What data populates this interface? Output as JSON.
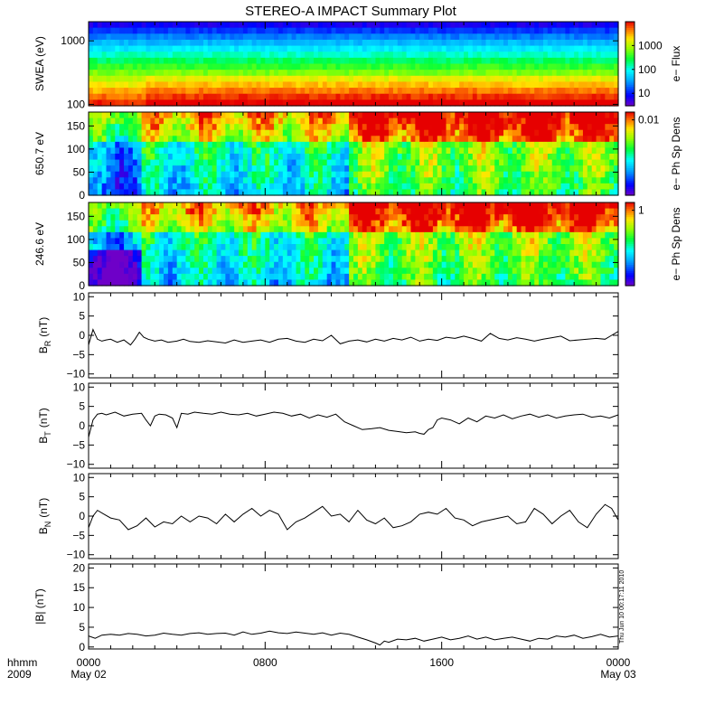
{
  "chart_data": {
    "title": "STEREO-A IMPACT Summary Plot",
    "timestamp": "Thu Jun 10 00:17:11 2010",
    "x_axis": {
      "range_hours": [
        0,
        24
      ],
      "corner_label_top": "hhmm",
      "corner_label_bottom": "2009",
      "ticks": [
        {
          "hour": 0,
          "label": "0000",
          "sub": "May 02"
        },
        {
          "hour": 8,
          "label": "0800",
          "sub": ""
        },
        {
          "hour": 16,
          "label": "1600",
          "sub": ""
        },
        {
          "hour": 24,
          "label": "0000",
          "sub": "May 03"
        }
      ]
    },
    "panels": [
      {
        "id": "swea",
        "type": "heatmap",
        "ylabel": "SWEA (eV)",
        "yscale": "log",
        "ylim": [
          95,
          2000
        ],
        "yticks": [
          {
            "v": 100,
            "label": "100"
          },
          {
            "v": 1000,
            "label": "1000"
          }
        ],
        "colorbar": {
          "label": "e− Flux",
          "scale": "log",
          "range": [
            3,
            10000
          ],
          "ticks": [
            {
              "v": 10,
              "label": "10"
            },
            {
              "v": 100,
              "label": "100"
            },
            {
              "v": 1000,
              "label": "1000"
            }
          ]
        }
      },
      {
        "id": "pad650",
        "type": "heatmap",
        "ylabel": "650.7 eV",
        "yscale": "linear",
        "ylim": [
          0,
          180
        ],
        "yticks": [
          {
            "v": 0,
            "label": "0"
          },
          {
            "v": 50,
            "label": "50"
          },
          {
            "v": 100,
            "label": "100"
          },
          {
            "v": 150,
            "label": "150"
          }
        ],
        "colorbar": {
          "label": "e− Ph Sp Dens",
          "scale": "log",
          "range": [
            0.0002,
            0.015
          ],
          "ticks": [
            {
              "v": 0.01,
              "label": "0.01"
            }
          ]
        }
      },
      {
        "id": "pad246",
        "type": "heatmap",
        "ylabel": "246.6 eV",
        "yscale": "linear",
        "ylim": [
          0,
          180
        ],
        "yticks": [
          {
            "v": 0,
            "label": "0"
          },
          {
            "v": 50,
            "label": "50"
          },
          {
            "v": 100,
            "label": "100"
          },
          {
            "v": 150,
            "label": "150"
          }
        ],
        "colorbar": {
          "label": "e− Ph Sp Dens",
          "scale": "log",
          "range": [
            0.02,
            1.5
          ],
          "ticks": [
            {
              "v": 1,
              "label": "1"
            }
          ]
        }
      },
      {
        "id": "br",
        "type": "line",
        "ylabel": "B",
        "ylabel_sub": "R",
        "ylabel_unit": "(nT)",
        "ylim": [
          -11,
          11
        ],
        "yticks": [
          {
            "v": -10,
            "label": "−10"
          },
          {
            "v": -5,
            "label": "−5"
          },
          {
            "v": 0,
            "label": "0"
          },
          {
            "v": 5,
            "label": "5"
          },
          {
            "v": 10,
            "label": "10"
          }
        ],
        "series": [
          {
            "x": [
              0,
              0.2,
              0.4,
              0.6,
              0.8,
              1.0,
              1.3,
              1.6,
              1.9,
              2.1,
              2.3,
              2.5,
              2.7,
              3.0,
              3.3,
              3.6,
              4.0,
              4.3,
              4.6,
              5.0,
              5.4,
              5.8,
              6.2,
              6.6,
              7.0,
              7.4,
              7.8,
              8.2,
              8.6,
              9.0,
              9.4,
              9.8,
              10.2,
              10.6,
              11.0,
              11.4,
              11.8,
              12.2,
              12.6,
              13.0,
              13.4,
              13.8,
              14.2,
              14.6,
              15.0,
              15.4,
              15.8,
              16.2,
              16.6,
              17.0,
              17.4,
              17.8,
              18.2,
              18.6,
              19.0,
              19.4,
              19.8,
              20.2,
              20.6,
              21.0,
              21.4,
              21.8,
              22.2,
              22.6,
              23.0,
              23.4,
              23.7,
              24.0
            ],
            "y": [
              -2.5,
              1.5,
              -1.0,
              -1.5,
              -1.2,
              -1.0,
              -1.8,
              -1.2,
              -2.5,
              -1.0,
              0.8,
              -0.5,
              -1.0,
              -1.5,
              -1.2,
              -1.8,
              -1.5,
              -1.0,
              -1.6,
              -1.8,
              -1.4,
              -1.7,
              -2.0,
              -1.2,
              -1.8,
              -1.5,
              -1.2,
              -1.8,
              -1.0,
              -0.8,
              -1.5,
              -1.8,
              -1.0,
              -1.4,
              0.0,
              -2.2,
              -1.5,
              -1.2,
              -1.7,
              -1.0,
              -1.5,
              -0.8,
              -1.2,
              -0.5,
              -1.5,
              -1.0,
              -1.3,
              -0.5,
              -0.8,
              -0.2,
              -0.8,
              -1.5,
              0.5,
              -0.8,
              -1.2,
              -0.6,
              -1.0,
              -1.5,
              -1.0,
              -0.6,
              -0.2,
              -1.4,
              -1.2,
              -1.0,
              -0.8,
              -1.0,
              0.0,
              1.0
            ]
          }
        ]
      },
      {
        "id": "bt",
        "type": "line",
        "ylabel": "B",
        "ylabel_sub": "T",
        "ylabel_unit": "(nT)",
        "ylim": [
          -11,
          11
        ],
        "yticks": [
          {
            "v": -10,
            "label": "−10"
          },
          {
            "v": -5,
            "label": "−5"
          },
          {
            "v": 0,
            "label": "0"
          },
          {
            "v": 5,
            "label": "5"
          },
          {
            "v": 10,
            "label": "10"
          }
        ],
        "series": [
          {
            "x": [
              0,
              0.2,
              0.4,
              0.6,
              0.8,
              1.2,
              1.6,
              2.0,
              2.4,
              2.6,
              2.8,
              3.0,
              3.2,
              3.5,
              3.8,
              4.0,
              4.2,
              4.5,
              4.8,
              5.2,
              5.6,
              6.0,
              6.4,
              6.8,
              7.2,
              7.6,
              8.0,
              8.4,
              8.8,
              9.2,
              9.6,
              10.0,
              10.4,
              10.8,
              11.2,
              11.6,
              12.0,
              12.4,
              12.8,
              13.2,
              13.6,
              14.0,
              14.4,
              14.8,
              15.0,
              15.2,
              15.4,
              15.6,
              15.8,
              16.0,
              16.4,
              16.8,
              17.2,
              17.6,
              18.0,
              18.4,
              18.8,
              19.2,
              19.6,
              20.0,
              20.4,
              20.8,
              21.2,
              21.6,
              22.0,
              22.4,
              22.8,
              23.2,
              23.6,
              24.0
            ],
            "y": [
              -3.0,
              1.5,
              3.0,
              3.2,
              2.8,
              3.5,
              2.5,
              3.0,
              3.2,
              1.5,
              0.0,
              2.5,
              3.0,
              2.8,
              2.0,
              -0.5,
              3.2,
              3.0,
              3.5,
              3.2,
              3.0,
              3.5,
              3.0,
              2.8,
              3.2,
              2.5,
              3.0,
              3.5,
              3.2,
              2.5,
              3.0,
              2.0,
              2.8,
              2.2,
              3.0,
              1.0,
              0.0,
              -1.0,
              -0.8,
              -0.5,
              -1.2,
              -1.5,
              -1.8,
              -1.6,
              -2.0,
              -2.2,
              -1.0,
              -0.5,
              1.5,
              2.0,
              1.5,
              0.5,
              2.0,
              1.0,
              2.5,
              2.0,
              2.8,
              1.8,
              2.5,
              3.0,
              2.2,
              2.8,
              2.0,
              2.5,
              2.8,
              3.0,
              2.2,
              2.5,
              2.0,
              2.8
            ]
          }
        ]
      },
      {
        "id": "bn",
        "type": "line",
        "ylabel": "B",
        "ylabel_sub": "N",
        "ylabel_unit": "(nT)",
        "ylim": [
          -11,
          11
        ],
        "yticks": [
          {
            "v": -10,
            "label": "−10"
          },
          {
            "v": -5,
            "label": "−5"
          },
          {
            "v": 0,
            "label": "0"
          },
          {
            "v": 5,
            "label": "5"
          },
          {
            "v": 10,
            "label": "10"
          }
        ],
        "series": [
          {
            "x": [
              0,
              0.2,
              0.4,
              0.7,
              1.0,
              1.4,
              1.8,
              2.2,
              2.6,
              3.0,
              3.4,
              3.8,
              4.2,
              4.6,
              5.0,
              5.4,
              5.8,
              6.2,
              6.6,
              7.0,
              7.4,
              7.8,
              8.2,
              8.6,
              9.0,
              9.4,
              9.8,
              10.2,
              10.6,
              11.0,
              11.4,
              11.8,
              12.2,
              12.6,
              13.0,
              13.4,
              13.8,
              14.2,
              14.6,
              15.0,
              15.4,
              15.8,
              16.2,
              16.6,
              17.0,
              17.4,
              17.8,
              18.2,
              18.6,
              19.0,
              19.4,
              19.8,
              20.2,
              20.6,
              21.0,
              21.4,
              21.8,
              22.2,
              22.6,
              23.0,
              23.4,
              23.7,
              24.0
            ],
            "y": [
              -3.0,
              0.0,
              1.5,
              0.5,
              -0.5,
              -1.0,
              -3.5,
              -2.5,
              -0.5,
              -2.8,
              -1.5,
              -2.0,
              0.0,
              -1.5,
              0.0,
              -0.5,
              -2.0,
              0.5,
              -1.5,
              0.5,
              2.0,
              0.0,
              1.5,
              0.5,
              -3.5,
              -1.5,
              -0.5,
              1.0,
              2.5,
              0.0,
              0.5,
              -1.5,
              1.5,
              -1.0,
              -2.0,
              -0.5,
              -3.0,
              -2.5,
              -1.5,
              0.5,
              1.0,
              0.5,
              2.0,
              -0.5,
              -1.0,
              -2.5,
              -1.5,
              -1.0,
              -0.5,
              0.0,
              -2.0,
              -1.5,
              2.0,
              0.5,
              -2.0,
              0.0,
              1.5,
              -1.5,
              -3.0,
              0.5,
              3.0,
              2.0,
              -1.0
            ]
          }
        ]
      },
      {
        "id": "bmag",
        "type": "line",
        "ylabel": "|B| (nT)",
        "ylim": [
          -0.5,
          21
        ],
        "yticks": [
          {
            "v": 0,
            "label": "0"
          },
          {
            "v": 5,
            "label": "5"
          },
          {
            "v": 10,
            "label": "10"
          },
          {
            "v": 15,
            "label": "15"
          },
          {
            "v": 20,
            "label": "20"
          }
        ],
        "series": [
          {
            "x": [
              0,
              0.3,
              0.6,
              1.0,
              1.4,
              1.8,
              2.2,
              2.6,
              3.0,
              3.4,
              3.8,
              4.2,
              4.6,
              5.0,
              5.4,
              5.8,
              6.2,
              6.6,
              7.0,
              7.4,
              7.8,
              8.2,
              8.6,
              9.0,
              9.4,
              9.8,
              10.2,
              10.6,
              11.0,
              11.4,
              11.8,
              12.2,
              12.6,
              13.0,
              13.2,
              13.4,
              13.6,
              14.0,
              14.4,
              14.8,
              15.2,
              15.6,
              16.0,
              16.4,
              16.8,
              17.2,
              17.6,
              18.0,
              18.4,
              18.8,
              19.2,
              19.6,
              20.0,
              20.4,
              20.8,
              21.2,
              21.6,
              22.0,
              22.4,
              22.8,
              23.2,
              23.6,
              24.0
            ],
            "y": [
              2.8,
              2.2,
              3.0,
              3.2,
              3.0,
              3.4,
              3.2,
              2.8,
              3.0,
              3.5,
              3.2,
              3.0,
              3.4,
              3.6,
              3.2,
              3.4,
              3.5,
              3.0,
              3.8,
              3.2,
              3.5,
              4.0,
              3.6,
              3.4,
              3.8,
              3.5,
              3.2,
              3.6,
              3.0,
              3.5,
              3.2,
              2.5,
              1.8,
              1.0,
              0.5,
              1.5,
              1.2,
              2.0,
              1.8,
              2.2,
              1.5,
              2.0,
              2.5,
              1.8,
              2.2,
              2.8,
              2.0,
              2.5,
              1.8,
              2.2,
              2.5,
              2.0,
              1.5,
              2.2,
              2.0,
              2.8,
              2.5,
              3.0,
              2.2,
              2.6,
              3.2,
              2.5,
              2.8
            ]
          }
        ]
      }
    ]
  }
}
